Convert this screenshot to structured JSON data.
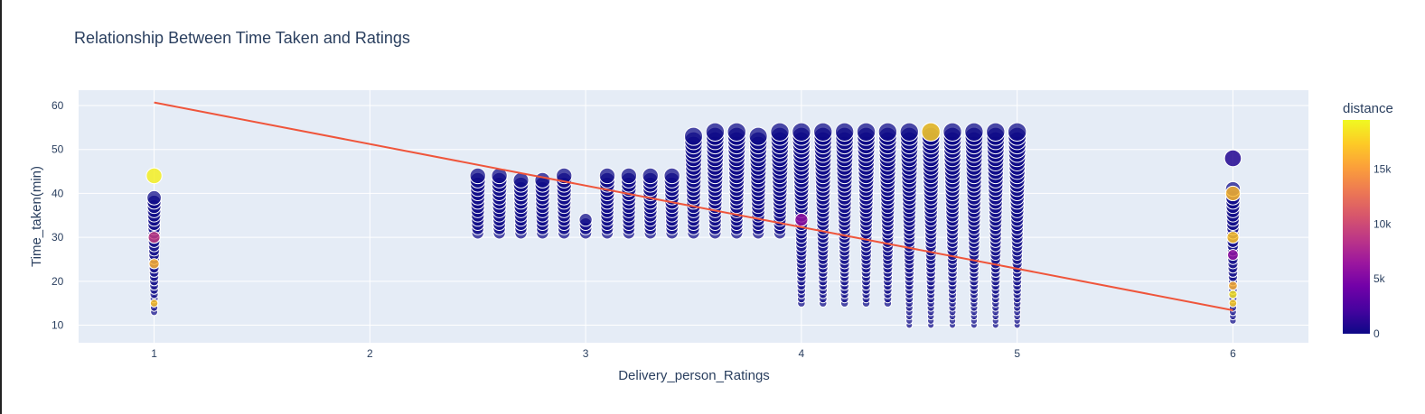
{
  "chart_data": {
    "type": "scatter",
    "title": "Relationship Between Time Taken and Ratings",
    "xlabel": "Delivery_person_Ratings",
    "ylabel": "Time_taken(min)",
    "xlim": [
      0.65,
      6.35
    ],
    "ylim": [
      6,
      63.5
    ],
    "x_ticks": [
      1,
      2,
      3,
      4,
      5,
      6
    ],
    "y_ticks": [
      10,
      20,
      30,
      40,
      50,
      60
    ],
    "grid": true,
    "colorbar": {
      "title": "distance",
      "ticks": [
        0,
        5000,
        10000,
        15000
      ],
      "tick_labels": [
        "0",
        "5k",
        "10k",
        "15k"
      ],
      "range": [
        0,
        19500
      ],
      "colorscale": [
        "#0d0887",
        "#46039f",
        "#7201a8",
        "#9c179e",
        "#bd3786",
        "#d8576b",
        "#ed7953",
        "#fb9f3a",
        "#fdca26",
        "#f0f921"
      ]
    },
    "rating_groups": [
      {
        "x": 1.0,
        "ymin": 13,
        "ymax": 39
      },
      {
        "x": 2.5,
        "ymin": 31,
        "ymax": 44
      },
      {
        "x": 2.6,
        "ymin": 31,
        "ymax": 44
      },
      {
        "x": 2.7,
        "ymin": 31,
        "ymax": 43
      },
      {
        "x": 2.8,
        "ymin": 31,
        "ymax": 43
      },
      {
        "x": 2.9,
        "ymin": 31,
        "ymax": 44
      },
      {
        "x": 3.0,
        "ymin": 31,
        "ymax": 34
      },
      {
        "x": 3.1,
        "ymin": 31,
        "ymax": 44
      },
      {
        "x": 3.2,
        "ymin": 31,
        "ymax": 44
      },
      {
        "x": 3.3,
        "ymin": 31,
        "ymax": 44
      },
      {
        "x": 3.4,
        "ymin": 31,
        "ymax": 44
      },
      {
        "x": 3.5,
        "ymin": 31,
        "ymax": 53
      },
      {
        "x": 3.6,
        "ymin": 31,
        "ymax": 54
      },
      {
        "x": 3.7,
        "ymin": 31,
        "ymax": 54
      },
      {
        "x": 3.8,
        "ymin": 31,
        "ymax": 53
      },
      {
        "x": 3.9,
        "ymin": 31,
        "ymax": 54
      },
      {
        "x": 4.0,
        "ymin": 15,
        "ymax": 54
      },
      {
        "x": 4.1,
        "ymin": 15,
        "ymax": 54
      },
      {
        "x": 4.2,
        "ymin": 15,
        "ymax": 54
      },
      {
        "x": 4.3,
        "ymin": 15,
        "ymax": 54
      },
      {
        "x": 4.4,
        "ymin": 15,
        "ymax": 54
      },
      {
        "x": 4.5,
        "ymin": 10,
        "ymax": 54
      },
      {
        "x": 4.6,
        "ymin": 10,
        "ymax": 54
      },
      {
        "x": 4.7,
        "ymin": 10,
        "ymax": 54
      },
      {
        "x": 4.8,
        "ymin": 10,
        "ymax": 54
      },
      {
        "x": 4.9,
        "ymin": 10,
        "ymax": 54
      },
      {
        "x": 5.0,
        "ymin": 10,
        "ymax": 54
      },
      {
        "x": 6.0,
        "ymin": 11,
        "ymax": 41
      }
    ],
    "highlight_points": [
      {
        "x": 1.0,
        "y": 44,
        "distance": 19000
      },
      {
        "x": 1.0,
        "y": 30,
        "distance": 9000
      },
      {
        "x": 1.0,
        "y": 24,
        "distance": 16000
      },
      {
        "x": 1.0,
        "y": 15,
        "distance": 17000
      },
      {
        "x": 4.0,
        "y": 34,
        "distance": 6000
      },
      {
        "x": 4.6,
        "y": 54,
        "distance": 17500
      },
      {
        "x": 6.0,
        "y": 48,
        "distance": 800
      },
      {
        "x": 6.0,
        "y": 40,
        "distance": 16500
      },
      {
        "x": 6.0,
        "y": 30,
        "distance": 17000
      },
      {
        "x": 6.0,
        "y": 26,
        "distance": 6000
      },
      {
        "x": 6.0,
        "y": 19,
        "distance": 16000
      },
      {
        "x": 6.0,
        "y": 17,
        "distance": 18500
      },
      {
        "x": 6.0,
        "y": 15,
        "distance": 17500
      }
    ],
    "trendline": {
      "x": [
        1,
        6
      ],
      "y": [
        60.7,
        13.4
      ],
      "color": "#ef553b"
    }
  }
}
